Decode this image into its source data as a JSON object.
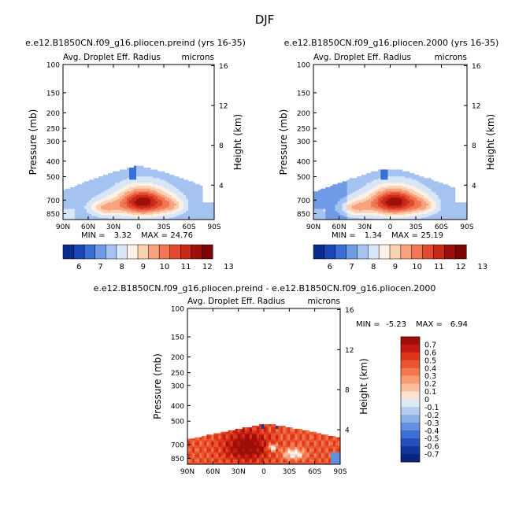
{
  "page_title": "DJF",
  "chart_data": [
    {
      "type": "heatmap",
      "title": "e.e12.B1850CN.f09_g16.pliocen.preind (yrs 16-35)",
      "subtitle_left": "Avg. Droplet Eff. Radius",
      "subtitle_right": "microns",
      "xlabel": "",
      "ylabel": "Pressure (mb)",
      "ylabel_right": "Height (km)",
      "x_ticks": [
        "90N",
        "60N",
        "30N",
        "0",
        "30S",
        "60S",
        "90S"
      ],
      "y_ticks": [
        "100",
        "150",
        "200",
        "250",
        "300",
        "400",
        "500",
        "700",
        "850"
      ],
      "y2_ticks": [
        "16",
        "12",
        "8",
        "4"
      ],
      "min_label": "MIN =",
      "min_value": "3.32",
      "max_label": "MAX =",
      "max_value": "24.76",
      "colorbar_levels": [
        "6",
        "7",
        "8",
        "9",
        "10",
        "11",
        "12",
        "13"
      ],
      "colorbar_colors": [
        "#0b2a8c",
        "#1c46b8",
        "#3a6fd6",
        "#6f9be6",
        "#a5c3f0",
        "#d8e6f8",
        "#fdf0e4",
        "#fbd0b3",
        "#f6a37e",
        "#f07655",
        "#e24a2d",
        "#c92a17",
        "#9e0f0b",
        "#7a0606"
      ]
    },
    {
      "type": "heatmap",
      "title": "e.e12.B1850CN.f09_g16.pliocen.2000 (yrs 16-35)",
      "subtitle_left": "Avg. Droplet Eff. Radius",
      "subtitle_right": "microns",
      "xlabel": "",
      "ylabel": "Pressure (mb)",
      "ylabel_right": "Height (km)",
      "x_ticks": [
        "90N",
        "60N",
        "30N",
        "0",
        "30S",
        "60S",
        "90S"
      ],
      "y_ticks": [
        "100",
        "150",
        "200",
        "250",
        "300",
        "400",
        "500",
        "700",
        "850"
      ],
      "y2_ticks": [
        "16",
        "12",
        "8",
        "4"
      ],
      "min_label": "MIN =",
      "min_value": "1.34",
      "max_label": "MAX =",
      "max_value": "25.19",
      "colorbar_levels": [
        "6",
        "7",
        "8",
        "9",
        "10",
        "11",
        "12",
        "13"
      ],
      "colorbar_colors": [
        "#0b2a8c",
        "#1c46b8",
        "#3a6fd6",
        "#6f9be6",
        "#a5c3f0",
        "#d8e6f8",
        "#fdf0e4",
        "#fbd0b3",
        "#f6a37e",
        "#f07655",
        "#e24a2d",
        "#c92a17",
        "#9e0f0b",
        "#7a0606"
      ]
    },
    {
      "type": "heatmap",
      "title": "e.e12.B1850CN.f09_g16.pliocen.preind - e.e12.B1850CN.f09_g16.pliocen.2000",
      "subtitle_left": "Avg. Droplet Eff. Radius",
      "subtitle_right": "microns",
      "xlabel": "",
      "ylabel": "Pressure (mb)",
      "ylabel_right": "Height (km)",
      "x_ticks": [
        "90N",
        "60N",
        "30N",
        "0",
        "30S",
        "60S",
        "90S"
      ],
      "y_ticks": [
        "100",
        "150",
        "200",
        "250",
        "300",
        "400",
        "500",
        "700",
        "850"
      ],
      "y2_ticks": [
        "16",
        "12",
        "8",
        "4"
      ],
      "min_label": "MIN =",
      "min_value": "-5.23",
      "max_label": "MAX =",
      "max_value": "6.94",
      "colorbar_levels": [
        "0.7",
        "0.6",
        "0.5",
        "0.4",
        "0.3",
        "0.2",
        "0.1",
        "0",
        "-0.1",
        "-0.2",
        "-0.3",
        "-0.4",
        "-0.5",
        "-0.6",
        "-0.7"
      ],
      "colorbar_colors": [
        "#9e0f0b",
        "#c21a10",
        "#dc3519",
        "#e9552e",
        "#f2794f",
        "#f89c74",
        "#fbbd9c",
        "#fde2d2",
        "#dde9f6",
        "#b6ccef",
        "#8eb0e8",
        "#6390de",
        "#3e6fd2",
        "#2350bb",
        "#12369d",
        "#0a2480"
      ]
    }
  ]
}
